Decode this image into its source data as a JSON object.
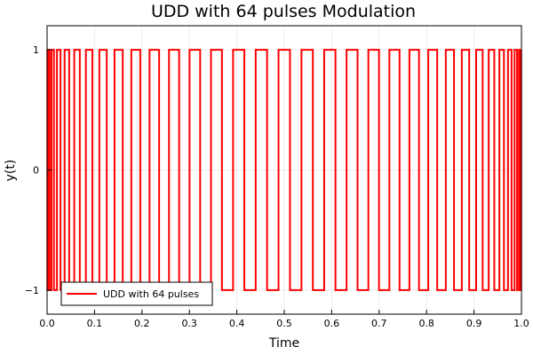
{
  "chart_data": {
    "type": "line",
    "title": "UDD with 64 pulses Modulation",
    "xlabel": "Time",
    "ylabel": "y(t)",
    "xlim": [
      0,
      1
    ],
    "ylim": [
      -1.2,
      1.2
    ],
    "xticks": [
      "0.0",
      "0.1",
      "0.2",
      "0.3",
      "0.4",
      "0.5",
      "0.6",
      "0.7",
      "0.8",
      "0.9",
      "1.0"
    ],
    "yticks": [
      "-1",
      "0",
      "1"
    ],
    "grid": true,
    "legend": {
      "position": "bottom-left"
    },
    "series": [
      {
        "name": "UDD with 64 pulses",
        "color": "#ff0000",
        "step": true,
        "switch_count": 64,
        "switch_rule": "t_j = sin^2(pi*j/(2*(64+1))), j = 1..64",
        "initial_value": 1
      }
    ]
  }
}
